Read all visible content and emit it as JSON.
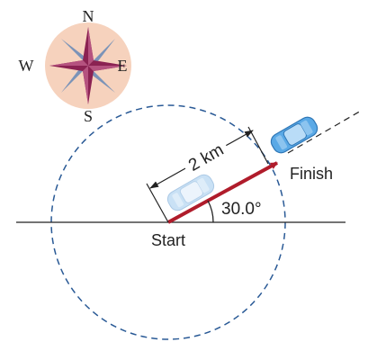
{
  "compass": {
    "north": "N",
    "south": "S",
    "east": "E",
    "west": "W",
    "icon": "compass-rose-icon"
  },
  "labels": {
    "start": "Start",
    "finish": "Finish",
    "distance": "2 km",
    "angle": "30.0°"
  },
  "colors": {
    "compass_disc": "#f6d2bd",
    "compass_star_dark": "#8b2252",
    "compass_star_light": "#7b93b8",
    "displacement_arrow": "#b01c2b",
    "circle_dashed": "#2a5a96",
    "car_body": "#5aa9e6",
    "car_body_faded": "#b8d8f2",
    "text": "#222222"
  }
}
